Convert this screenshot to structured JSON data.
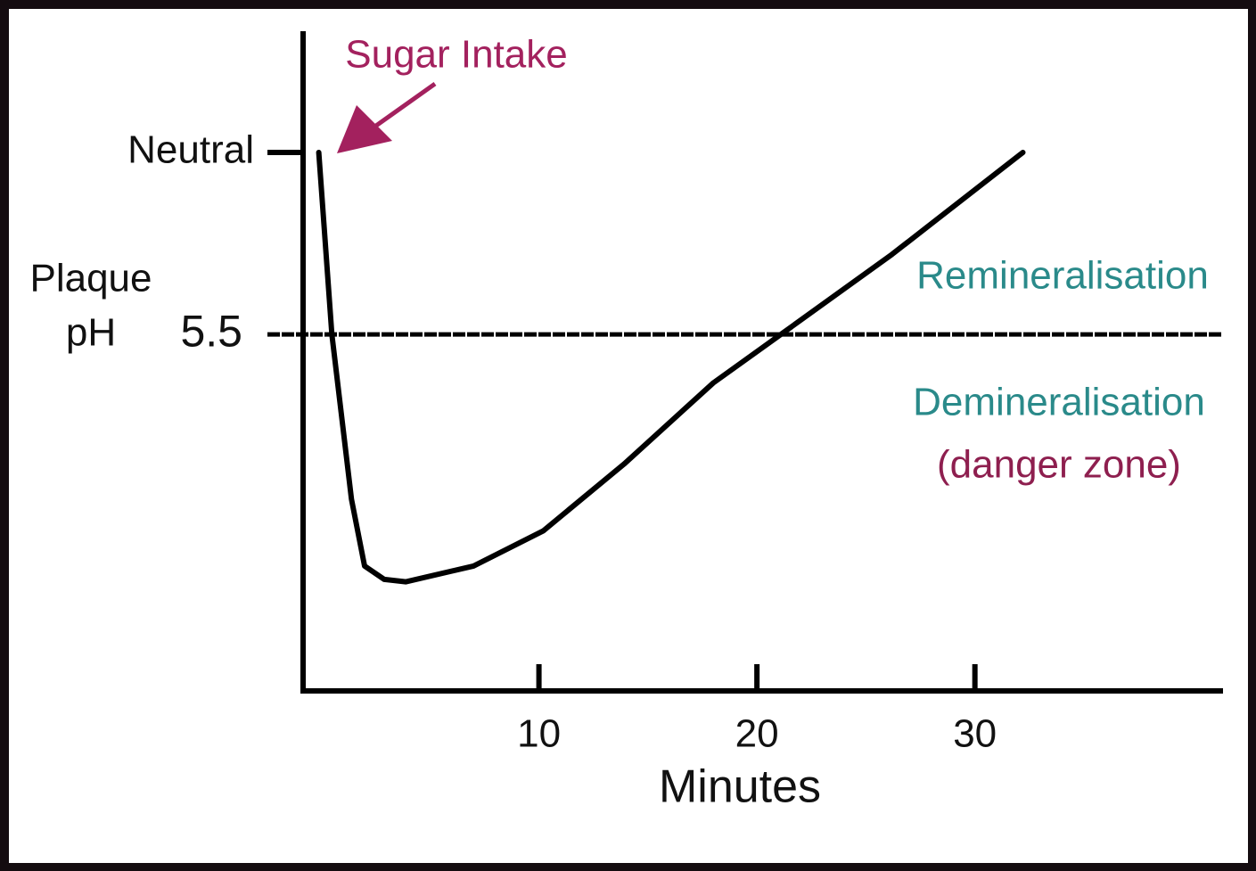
{
  "chart_data": {
    "type": "line",
    "ylabel": [
      "Plaque",
      "pH"
    ],
    "xlabel": "Minutes",
    "x": [
      -0.1,
      0.5,
      1.4,
      2.0,
      2.9,
      3.9,
      7.0,
      10.2,
      13.9,
      18.0,
      21.1,
      26.2,
      32.2
    ],
    "series": [
      {
        "name": "Plaque pH",
        "color": "#000000",
        "values": [
          7.0,
          5.5,
          4.14,
          3.59,
          3.48,
          3.46,
          3.59,
          3.88,
          4.43,
          5.1,
          5.5,
          6.16,
          7.0
        ]
      }
    ],
    "xlim": [
      -0.82,
      41.3
    ],
    "ylim": [
      2.56,
      8.0
    ],
    "xticks": [
      10,
      20,
      30
    ],
    "yticks": [
      {
        "value": 7,
        "label": "Neutral"
      },
      5.5
    ],
    "annotations": [
      {
        "text": "Sugar Intake",
        "color": "#a3215e"
      },
      {
        "text": "Remineralisation",
        "color": "#2a8a8a"
      },
      {
        "text": "Demineralisation",
        "color": "#2a8a8a"
      },
      {
        "text": "(danger zone)",
        "color": "#8e1f4f"
      }
    ]
  }
}
